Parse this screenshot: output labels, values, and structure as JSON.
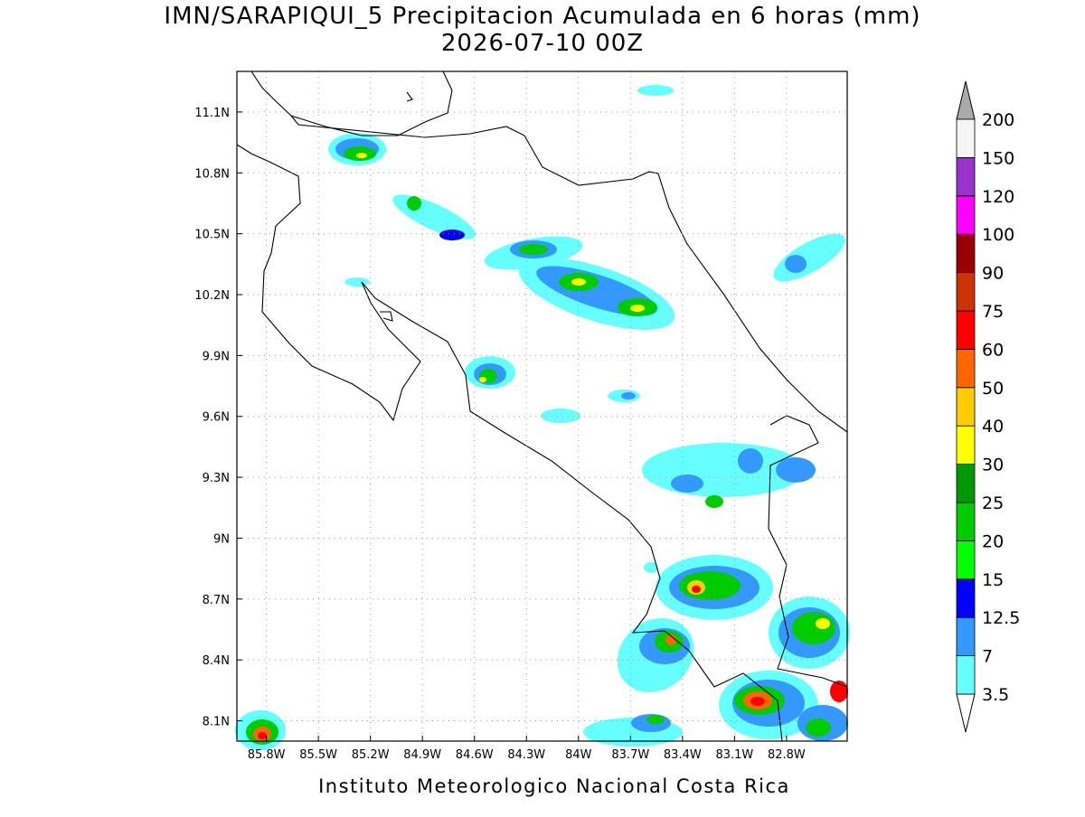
{
  "header": {
    "title": "IMN/SARAPIQUI_5 Precipitacion Acumulada en 6 horas (mm)",
    "subtitle": "2026-07-10 00Z"
  },
  "map": {
    "xlim": [
      -85.97,
      -82.45
    ],
    "ylim": [
      8.0,
      11.3
    ],
    "xticks": [
      {
        "value": -85.8,
        "label": "85.8W"
      },
      {
        "value": -85.5,
        "label": "85.5W"
      },
      {
        "value": -85.2,
        "label": "85.2W"
      },
      {
        "value": -84.9,
        "label": "84.9W"
      },
      {
        "value": -84.6,
        "label": "84.6W"
      },
      {
        "value": -84.3,
        "label": "84.3W"
      },
      {
        "value": -84,
        "label": "84W"
      },
      {
        "value": -83.7,
        "label": "83.7W"
      },
      {
        "value": -83.4,
        "label": "83.4W"
      },
      {
        "value": -83.1,
        "label": "83.1W"
      },
      {
        "value": -82.8,
        "label": "82.8W"
      }
    ],
    "yticks": [
      {
        "value": 8.1,
        "label": "8.1N"
      },
      {
        "value": 8.4,
        "label": "8.4N"
      },
      {
        "value": 8.7,
        "label": "8.7N"
      },
      {
        "value": 9,
        "label": "9N"
      },
      {
        "value": 9.3,
        "label": "9.3N"
      },
      {
        "value": 9.6,
        "label": "9.6N"
      },
      {
        "value": 9.9,
        "label": "9.9N"
      },
      {
        "value": 10.2,
        "label": "10.2N"
      },
      {
        "value": 10.5,
        "label": "10.5N"
      },
      {
        "value": 10.8,
        "label": "10.8N"
      },
      {
        "value": 11.1,
        "label": "11.1N"
      }
    ]
  },
  "colorbar": {
    "levels": [
      3.5,
      7,
      12.5,
      15,
      20,
      25,
      30,
      40,
      50,
      60,
      75,
      90,
      100,
      120,
      150,
      200
    ],
    "colors": [
      "#66ffff",
      "#3399ff",
      "#0000ff",
      "#00ff00",
      "#00cc00",
      "#009900",
      "#ffff00",
      "#ffcc00",
      "#ff6600",
      "#ff0000",
      "#cc3300",
      "#990000",
      "#ff00ff",
      "#9933cc",
      "#f5f5f5"
    ]
  },
  "footer": "Instituto Meteorologico Nacional Costa Rica"
}
